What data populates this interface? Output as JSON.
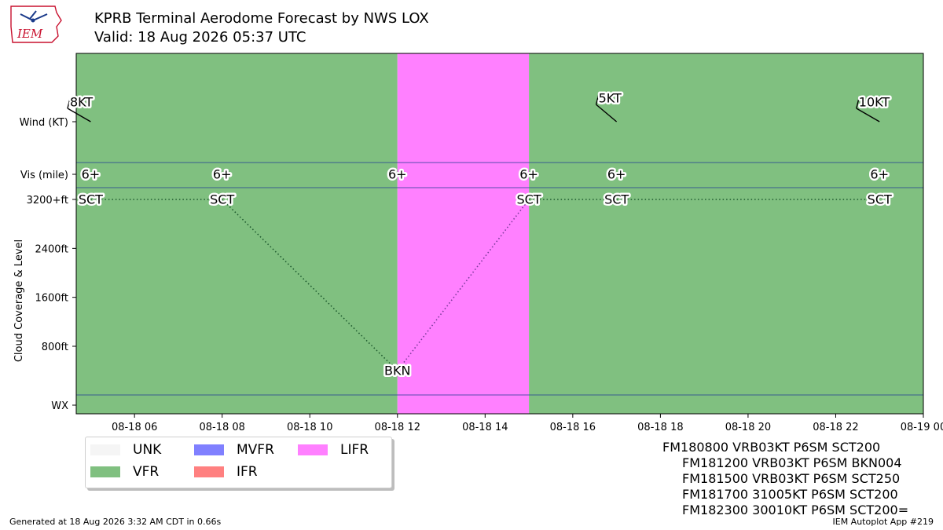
{
  "header": {
    "title": "KPRB Terminal Aerodome Forecast by NWS LOX",
    "subtitle": "Valid: 18 Aug 2026 05:37 UTC",
    "logo_text": "IEM"
  },
  "chart_data": {
    "type": "timeline",
    "xlim": [
      "2026-08-18 04:40",
      "2026-08-19 00:00"
    ],
    "x_tick_labels": [
      "08-18 06",
      "08-18 08",
      "08-18 10",
      "08-18 12",
      "08-18 14",
      "08-18 16",
      "08-18 18",
      "08-18 20",
      "08-18 22",
      "08-19 00"
    ],
    "x_tick_hours": [
      6,
      8,
      10,
      12,
      14,
      16,
      18,
      20,
      22,
      24
    ],
    "x_start_hour": 4.67,
    "x_end_hour": 24,
    "ylabel": "Cloud Coverage & Level",
    "y_row_labels": {
      "wind": "Wind (KT)",
      "vis": "Vis (mile)",
      "wx": "WX"
    },
    "y_tick_labels": [
      "3200+ft",
      "2400ft",
      "1600ft",
      "800ft"
    ],
    "y_tick_values": [
      3200,
      2400,
      1600,
      800
    ],
    "flight_category_bands": [
      {
        "start_hour": 4.67,
        "end_hour": 12,
        "category": "VFR"
      },
      {
        "start_hour": 12,
        "end_hour": 15,
        "category": "LIFR"
      },
      {
        "start_hour": 15,
        "end_hour": 24,
        "category": "VFR"
      }
    ],
    "category_colors": {
      "UNK": "#f5f5f5",
      "VFR": "#80c080",
      "MVFR": "#8080ff",
      "IFR": "#ff8080",
      "LIFR": "#ff80ff"
    },
    "wind": [
      {
        "hour": 5,
        "dir_deg": 300,
        "speed_kt": 8,
        "label": "8KT"
      },
      {
        "hour": 17,
        "dir_deg": 310,
        "speed_kt": 5,
        "label": "5KT"
      },
      {
        "hour": 23,
        "dir_deg": 300,
        "speed_kt": 10,
        "label": "10KT"
      }
    ],
    "visibility": [
      {
        "hour": 5,
        "label": "6+"
      },
      {
        "hour": 8,
        "label": "6+"
      },
      {
        "hour": 12,
        "label": "6+"
      },
      {
        "hour": 15,
        "label": "6+"
      },
      {
        "hour": 17,
        "label": "6+"
      },
      {
        "hour": 23,
        "label": "6+"
      }
    ],
    "clouds": [
      {
        "hour": 5,
        "level_ft": 3200,
        "cover": "SCT"
      },
      {
        "hour": 8,
        "level_ft": 3200,
        "cover": "SCT"
      },
      {
        "hour": 12,
        "level_ft": 400,
        "cover": "BKN"
      },
      {
        "hour": 15,
        "level_ft": 3200,
        "cover": "SCT"
      },
      {
        "hour": 17,
        "level_ft": 3200,
        "cover": "SCT"
      },
      {
        "hour": 23,
        "level_ft": 3200,
        "cover": "SCT"
      }
    ],
    "legend": [
      {
        "label": "UNK",
        "color": "#f5f5f5"
      },
      {
        "label": "VFR",
        "color": "#80c080"
      },
      {
        "label": "MVFR",
        "color": "#8080ff"
      },
      {
        "label": "IFR",
        "color": "#ff8080"
      },
      {
        "label": "LIFR",
        "color": "#ff80ff"
      }
    ]
  },
  "taf_text": [
    "FM180800 VRB03KT P6SM SCT200",
    "FM181200 VRB03KT P6SM BKN004",
    "FM181500 VRB03KT P6SM SCT250",
    "FM181700 31005KT P6SM SCT200",
    "FM182300 30010KT P6SM SCT200="
  ],
  "footer": {
    "left": "Generated at 18 Aug 2026 3:32 AM CDT in 0.66s",
    "right": "IEM Autoplot App #219"
  }
}
